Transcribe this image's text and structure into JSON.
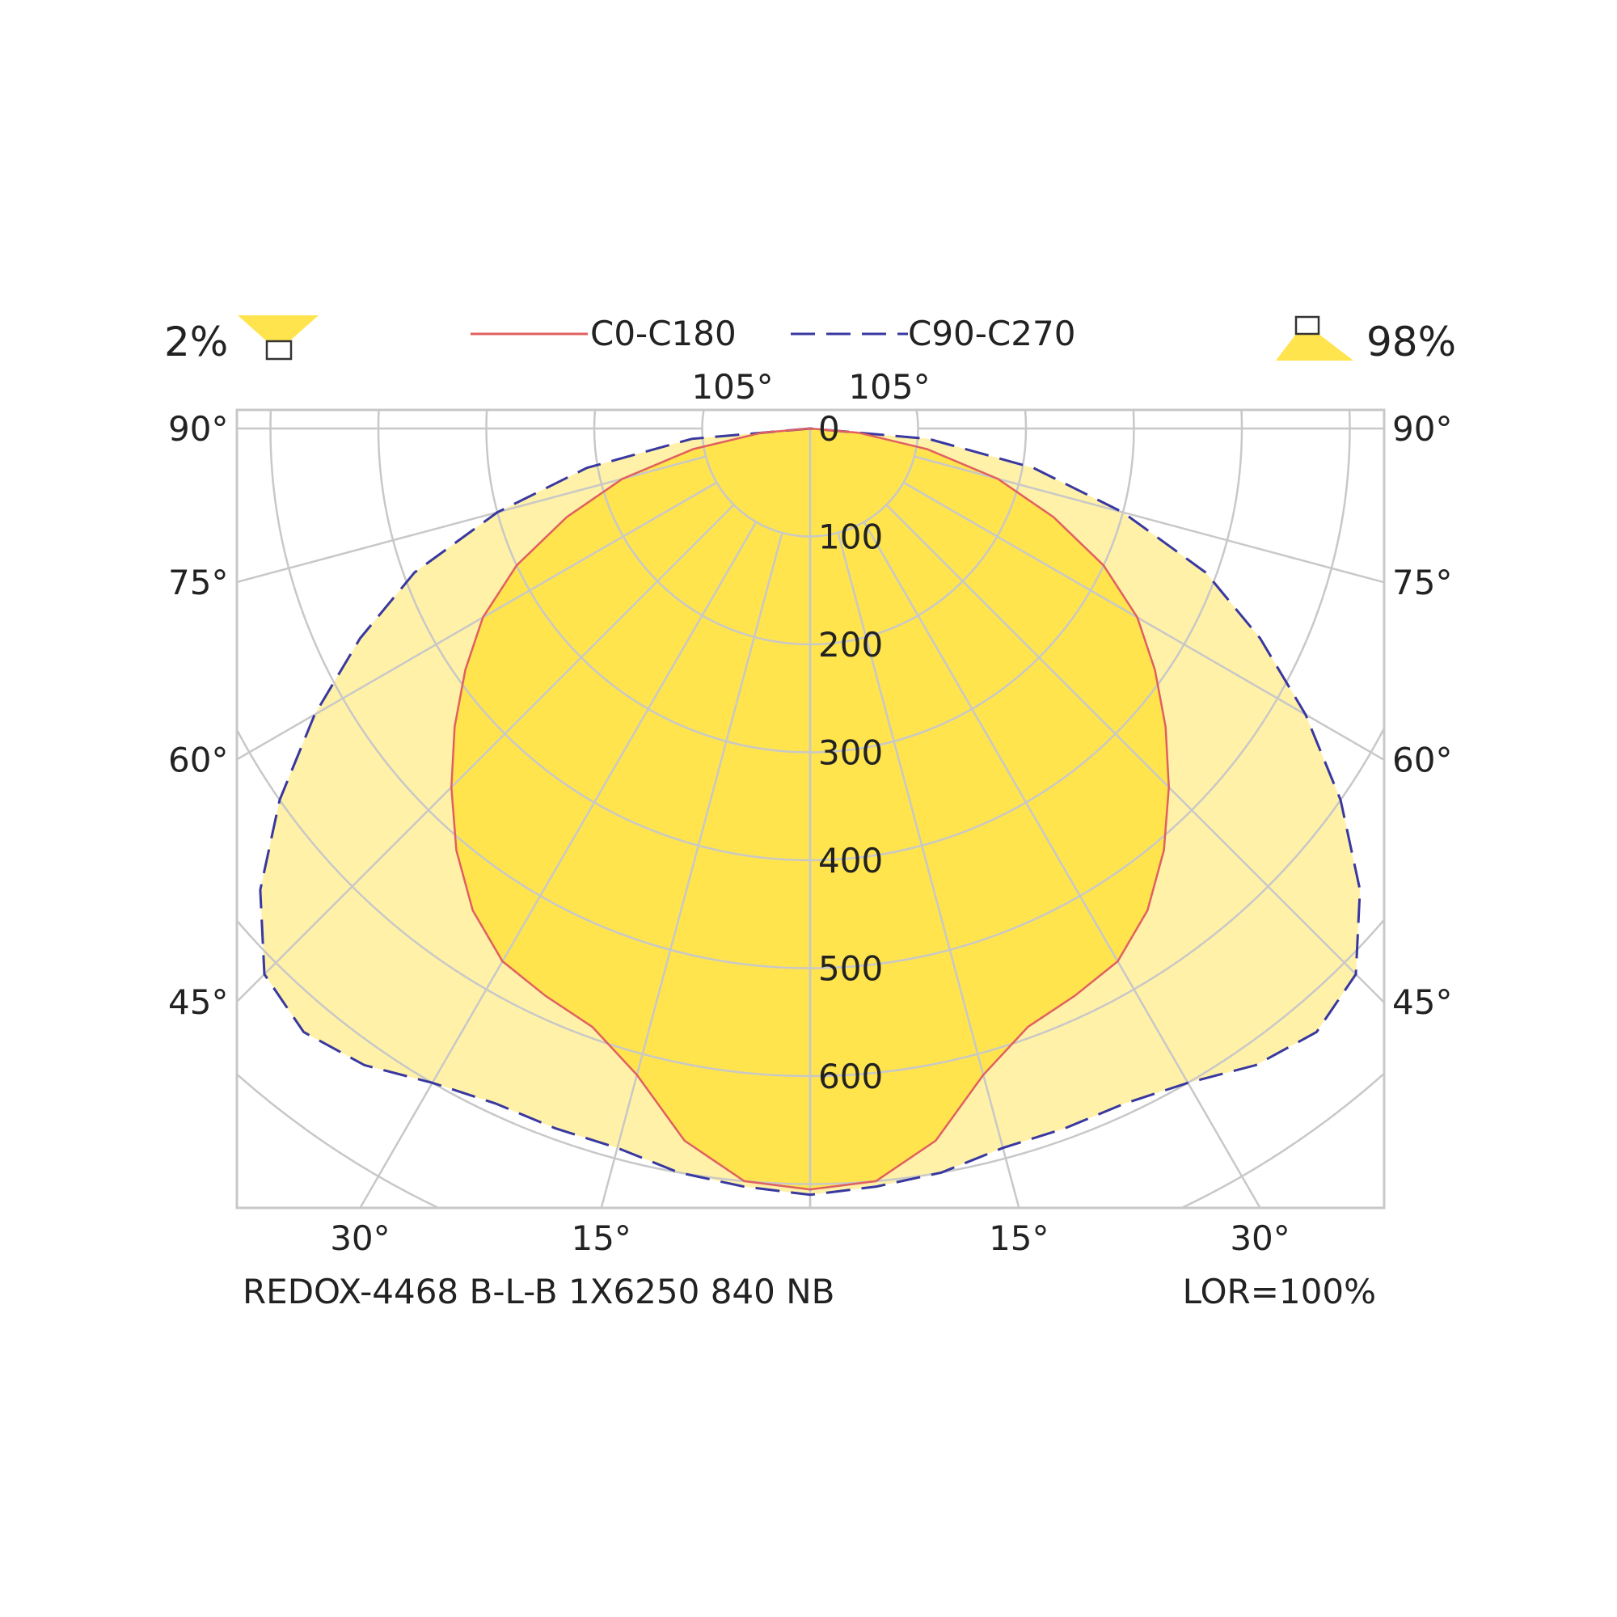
{
  "chart_data": {
    "type": "polar",
    "legend": {
      "placement": "top-center",
      "items": [
        {
          "label": "C0-C180",
          "color": "#e06060",
          "dash": "solid"
        },
        {
          "label": "C90-C270",
          "color": "#3838a0",
          "dash": "dashed"
        }
      ]
    },
    "downward_ratio": "98%",
    "upward_ratio": "2%",
    "product": "REDOX-4468 B-L-B 1X6250 840 NB",
    "lor": "LOR=100%",
    "radial_ticks": [
      0,
      100,
      200,
      300,
      400,
      500,
      600
    ],
    "radial_tick_labels": [
      "0",
      "100",
      "200",
      "300",
      "400",
      "500",
      "600"
    ],
    "radial_max": 700,
    "angle_grid_step": 15,
    "side_angle_labels": [
      "90°",
      "75°",
      "60°",
      "45°"
    ],
    "bottom_angle_labels": [
      "30°",
      "15°",
      "15°",
      "30°"
    ],
    "top_angle_labels": [
      "105°",
      "105°"
    ],
    "grid": true,
    "colors": {
      "c0_fill": "#ffe44d",
      "c0_stroke": "#e06060",
      "c90_fill": "#fff1a8",
      "c90_stroke": "#3838a0",
      "grid": "#c8c8c8",
      "frame": "#c8c8c8"
    },
    "series": [
      {
        "name": "C0-C180",
        "angles_deg": [
          0,
          5,
          10,
          15,
          20,
          25,
          30,
          35,
          40,
          45,
          50,
          55,
          60,
          65,
          70,
          75,
          80,
          85,
          90
        ],
        "intensity": [
          705,
          700,
          670,
          620,
          590,
          580,
          570,
          545,
          510,
          470,
          430,
          390,
          350,
          300,
          240,
          180,
          110,
          45,
          0
        ]
      },
      {
        "name": "C90-C270",
        "angles_deg": [
          0,
          5,
          10,
          15,
          20,
          25,
          30,
          35,
          40,
          45,
          50,
          55,
          60,
          65,
          70,
          75,
          80,
          85,
          90
        ],
        "intensity": [
          710,
          705,
          700,
          690,
          690,
          690,
          700,
          720,
          730,
          715,
          665,
          600,
          530,
          460,
          390,
          300,
          210,
          110,
          0
        ]
      }
    ]
  }
}
